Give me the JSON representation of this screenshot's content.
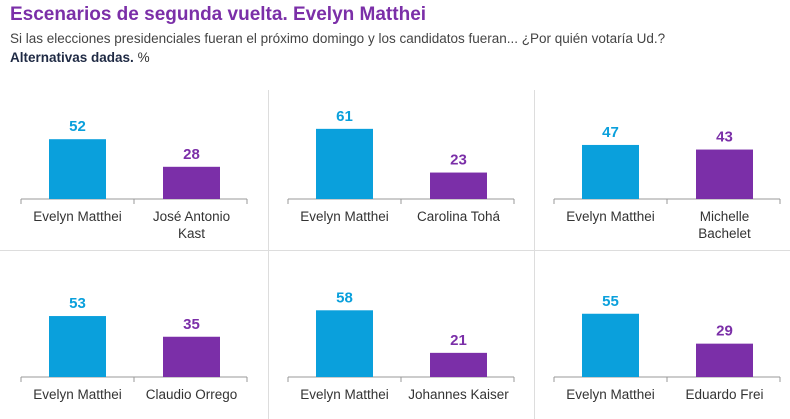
{
  "header": {
    "title": "Escenarios de segunda vuelta. Evelyn Matthei",
    "subtitle": "Si las elecciones presidenciales fueran el próximo domingo y los candidatos fueran... ¿Por quién votaría Ud.?",
    "note_bold": "Alternativas dadas.",
    "note_unit": "%"
  },
  "colors": {
    "matthei": "#0aa0dc",
    "opponent": "#7b2fa8",
    "title": "#7b2fa8"
  },
  "chart_data": [
    {
      "type": "bar",
      "categories": [
        "Evelyn Matthei",
        "José Antonio Kast"
      ],
      "values": [
        52,
        28
      ]
    },
    {
      "type": "bar",
      "categories": [
        "Evelyn Matthei",
        "Carolina Tohá"
      ],
      "values": [
        61,
        23
      ]
    },
    {
      "type": "bar",
      "categories": [
        "Evelyn Matthei",
        "Michelle Bachelet"
      ],
      "values": [
        47,
        43
      ]
    },
    {
      "type": "bar",
      "categories": [
        "Evelyn Matthei",
        "Claudio Orrego"
      ],
      "values": [
        53,
        35
      ]
    },
    {
      "type": "bar",
      "categories": [
        "Evelyn Matthei",
        "Johannes Kaiser"
      ],
      "values": [
        58,
        21
      ]
    },
    {
      "type": "bar",
      "categories": [
        "Evelyn Matthei",
        "Eduardo Frei"
      ],
      "values": [
        55,
        29
      ]
    }
  ]
}
